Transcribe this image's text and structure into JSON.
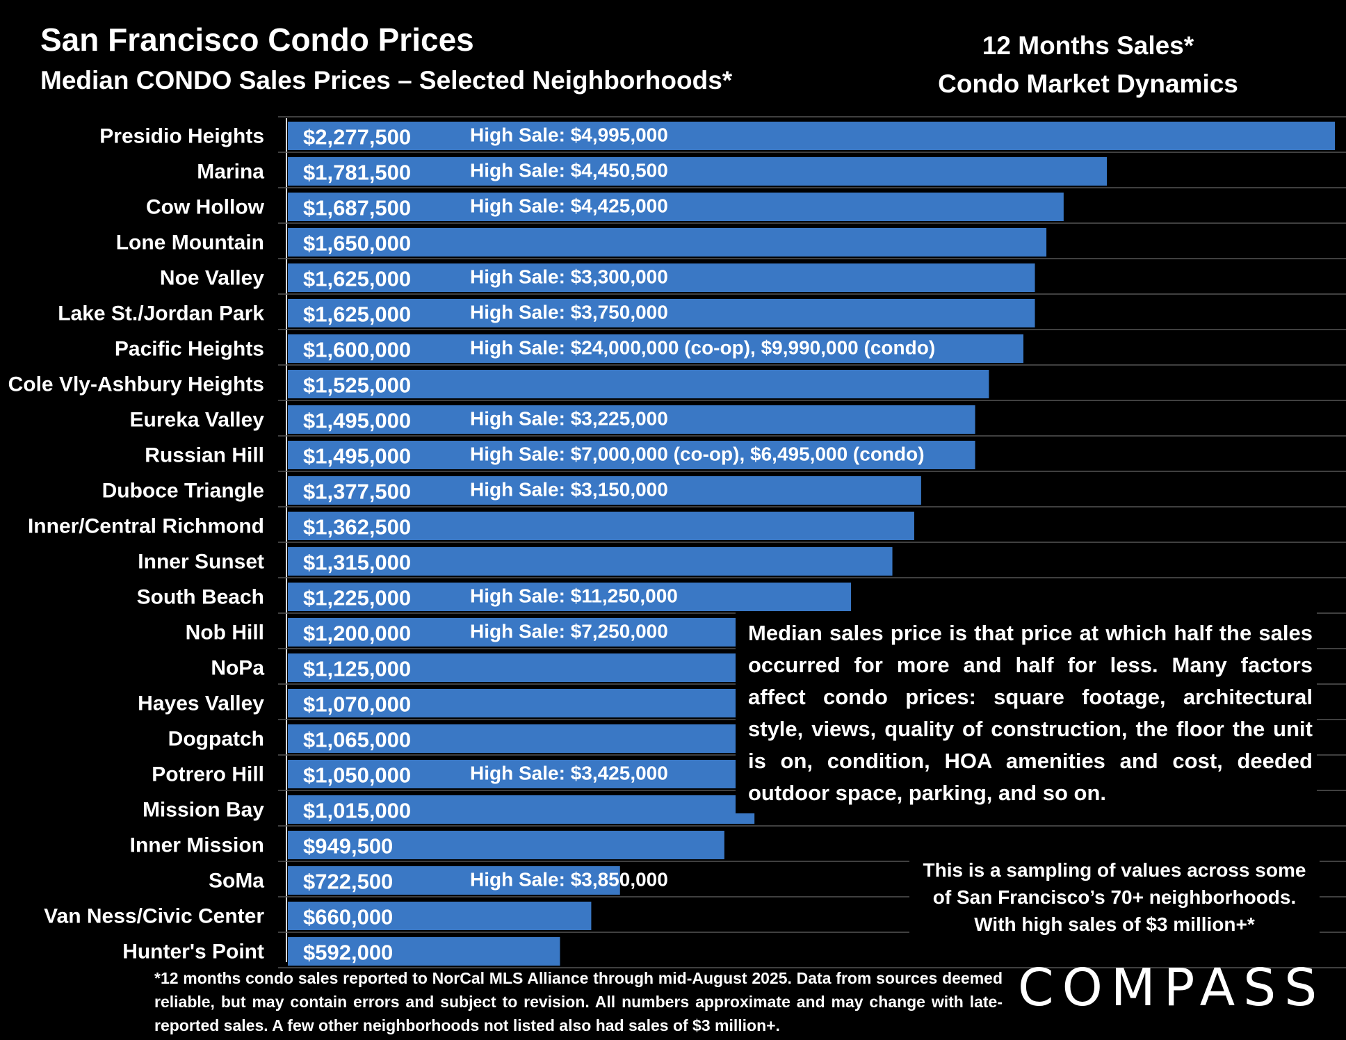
{
  "header": {
    "title": "San Francisco Condo Prices",
    "subtitle": "Median CONDO Sales Prices – Selected Neighborhoods*",
    "right_line1": "12 Months Sales*",
    "right_line2": "Condo Market Dynamics"
  },
  "chart_data": {
    "type": "bar",
    "orientation": "horizontal",
    "bar_color": "#3A78C5",
    "background": "#000000",
    "categories": [
      "Presidio Heights",
      "Marina",
      "Cow Hollow",
      "Lone Mountain",
      "Noe Valley",
      "Lake St./Jordan Park",
      "Pacific Heights",
      "Cole Vly-Ashbury Heights",
      "Eureka Valley",
      "Russian Hill",
      "Duboce Triangle",
      "Inner/Central Richmond",
      "Inner Sunset",
      "South Beach",
      "Nob Hill",
      "NoPa",
      "Hayes Valley",
      "Dogpatch",
      "Potrero Hill",
      "Mission Bay",
      "Inner Mission",
      "SoMa",
      "Van Ness/Civic Center",
      "Hunter's Point"
    ],
    "values": [
      2277500,
      1781500,
      1687500,
      1650000,
      1625000,
      1625000,
      1600000,
      1525000,
      1495000,
      1495000,
      1377500,
      1362500,
      1315000,
      1225000,
      1200000,
      1125000,
      1070000,
      1065000,
      1050000,
      1015000,
      949500,
      722500,
      660000,
      592000
    ],
    "value_labels": [
      "$2,277,500",
      "$1,781,500",
      "$1,687,500",
      "$1,650,000",
      "$1,625,000",
      "$1,625,000",
      "$1,600,000",
      "$1,525,000",
      "$1,495,000",
      "$1,495,000",
      "$1,377,500",
      "$1,362,500",
      "$1,315,000",
      "$1,225,000",
      "$1,200,000",
      "$1,125,000",
      "$1,070,000",
      "$1,065,000",
      "$1,050,000",
      "$1,015,000",
      "$949,500",
      "$722,500",
      "$660,000",
      "$592,000"
    ],
    "high_sales": [
      "$4,995,000",
      "$4,450,500",
      "$4,425,000",
      "",
      "$3,300,000",
      "$3,750,000",
      "$24,000,000 (co-op), $9,990,000 (condo)",
      "",
      "$3,225,000",
      "$7,000,000 (co-op), $6,495,000 (condo)",
      "$3,150,000",
      "",
      "",
      "$11,250,000",
      "$7,250,000",
      "",
      "",
      "",
      "$3,425,000",
      "",
      "",
      "$3,850,000",
      "",
      ""
    ],
    "high_sale_prefix": "High Sale:",
    "xlim": [
      0,
      2277500
    ],
    "grid": "horizontal"
  },
  "note": "Median sales price is that price at which half the sales occurred for more and half for less. Many factors affect condo prices: square footage, architectural style, views, quality of construction, the floor the unit is on, condition, HOA amenities and cost, deeded outdoor space, parking, and so on.",
  "sampling": {
    "line1": "This is a sampling of values across some",
    "line2": "of San Francisco’s 70+ neighborhoods.",
    "line3": "With high sales of $3 million+*"
  },
  "footnote": "*12 months condo sales reported to NorCal MLS Alliance through mid-August 2025. Data from sources deemed reliable, but may contain errors and subject to revision. All numbers approximate and may change with late-reported sales. A few other neighborhoods not listed also had sales of $3 million+.",
  "logo": "COMPASS"
}
